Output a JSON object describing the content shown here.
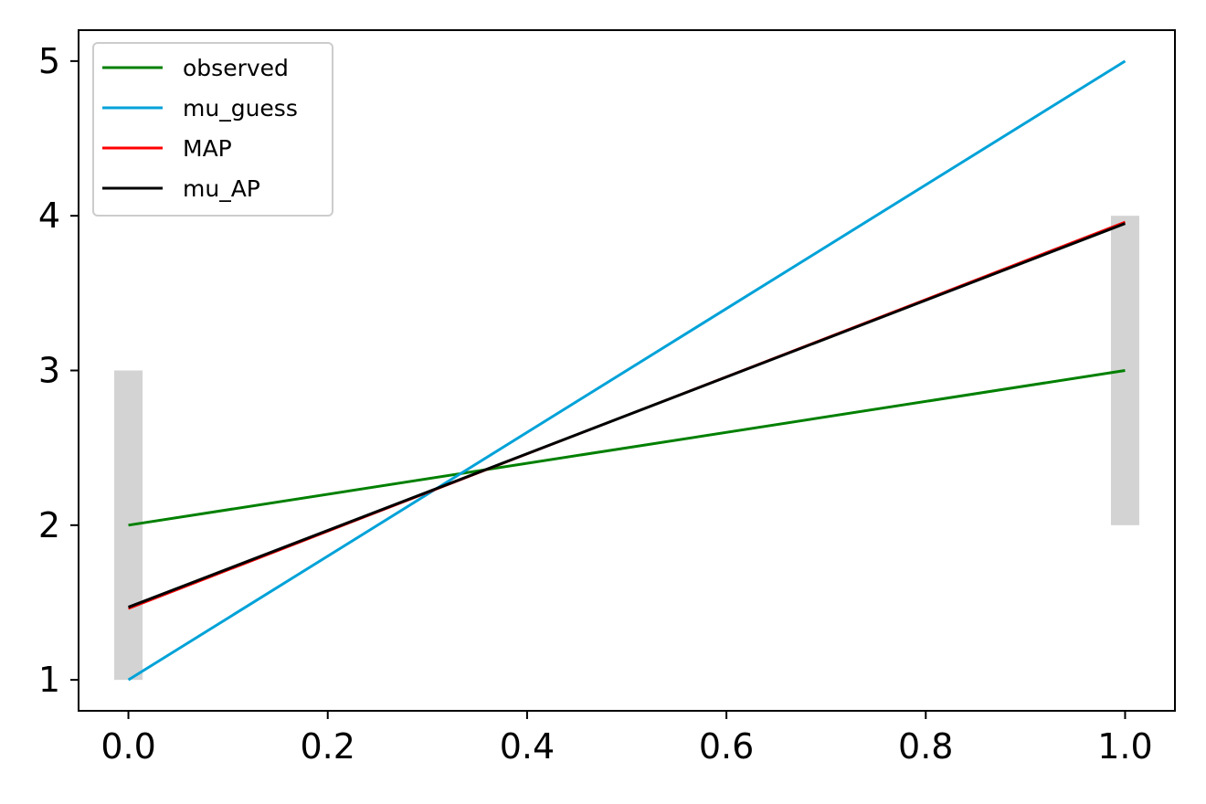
{
  "chart_data": {
    "type": "line",
    "title": "",
    "xlabel": "",
    "ylabel": "",
    "xlim": [
      -0.05,
      1.05
    ],
    "ylim": [
      0.8,
      5.2
    ],
    "xticks": [
      0.0,
      0.2,
      0.4,
      0.6,
      0.8,
      1.0
    ],
    "xtick_labels": [
      "0.0",
      "0.2",
      "0.4",
      "0.6",
      "0.8",
      "1.0"
    ],
    "yticks": [
      1,
      2,
      3,
      4,
      5
    ],
    "ytick_labels": [
      "1",
      "2",
      "3",
      "4",
      "5"
    ],
    "grid": false,
    "legend_position": "upper-left",
    "error_bars": [
      {
        "x": 0.0,
        "low": 1.0,
        "high": 3.0,
        "color": "#d3d3d3"
      },
      {
        "x": 1.0,
        "low": 2.0,
        "high": 4.0,
        "color": "#d3d3d3"
      }
    ],
    "series": [
      {
        "name": "observed",
        "color": "#008000",
        "x": [
          0.0,
          1.0
        ],
        "y": [
          2.0,
          3.0
        ]
      },
      {
        "name": "mu_guess",
        "color": "#00a2d8",
        "x": [
          0.0,
          1.0
        ],
        "y": [
          1.0,
          5.0
        ]
      },
      {
        "name": "MAP",
        "color": "#ff0000",
        "x": [
          0.0,
          1.0
        ],
        "y": [
          1.46,
          3.96
        ]
      },
      {
        "name": "mu_AP",
        "color": "#000000",
        "x": [
          0.0,
          1.0
        ],
        "y": [
          1.47,
          3.95
        ]
      }
    ]
  }
}
